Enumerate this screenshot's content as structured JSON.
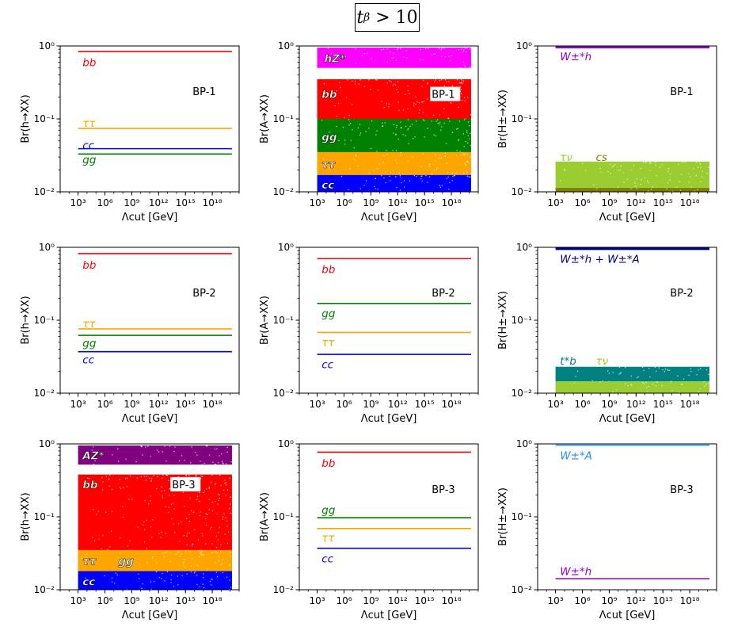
{
  "figure": {
    "title_base": "t",
    "title_sub": "β",
    "title_rel": "> 10"
  },
  "chart_data": [
    {
      "type": "band-plot",
      "panel": "r1c1",
      "title": "BP-1",
      "xlabel": "Λcut [GeV]",
      "ylabel": "Br(h→XX)",
      "xlim": [
        1,
        21
      ],
      "ylim": [
        0.01,
        1
      ],
      "xticks": [
        {
          "v": 3,
          "label": "10³"
        },
        {
          "v": 6,
          "label": "10⁶"
        },
        {
          "v": 9,
          "label": "10⁹"
        },
        {
          "v": 12,
          "label": "10¹²"
        },
        {
          "v": 15,
          "label": "10¹⁵"
        },
        {
          "v": 18,
          "label": "10¹⁸"
        }
      ],
      "yticks": [
        {
          "v": 0.01,
          "label": "10⁻²"
        },
        {
          "v": 0.1,
          "label": "10⁻¹"
        },
        {
          "v": 1,
          "label": "10⁰"
        }
      ],
      "series": [
        {
          "name": "bb",
          "kind": "line",
          "value": 0.84,
          "color": "#ff0000"
        },
        {
          "name": "ττ",
          "kind": "line",
          "value": 0.074,
          "color": "#ffa500"
        },
        {
          "name": "cc",
          "kind": "line",
          "value": 0.039,
          "color": "#0000ff"
        },
        {
          "name": "gg",
          "kind": "line",
          "value": 0.033,
          "color": "#008000"
        }
      ],
      "labels": [
        {
          "text": "bb",
          "color": "#ff0000",
          "x": 3.5,
          "y": 0.6
        },
        {
          "text": "ττ",
          "color": "#ffa500",
          "x": 3.5,
          "y": 0.088
        },
        {
          "text": "cc",
          "color": "#0000ff",
          "x": 3.5,
          "y": 0.044
        },
        {
          "text": "gg",
          "color": "#008000",
          "x": 3.5,
          "y": 0.028
        }
      ]
    },
    {
      "type": "band-plot",
      "panel": "r1c2",
      "title": "BP-1",
      "xlabel": "Λcut [GeV]",
      "ylabel": "Br(A→XX)",
      "xlim": [
        1,
        21
      ],
      "ylim": [
        0.01,
        1
      ],
      "xticks": [
        {
          "v": 3,
          "label": "10³"
        },
        {
          "v": 6,
          "label": "10⁶"
        },
        {
          "v": 9,
          "label": "10⁹"
        },
        {
          "v": 12,
          "label": "10¹²"
        },
        {
          "v": 15,
          "label": "10¹⁵"
        },
        {
          "v": 18,
          "label": "10¹⁸"
        }
      ],
      "yticks": [
        {
          "v": 0.01,
          "label": "10⁻²"
        },
        {
          "v": 0.1,
          "label": "10⁻¹"
        },
        {
          "v": 1,
          "label": "10⁰"
        }
      ],
      "series": [
        {
          "name": "hZ*",
          "kind": "band",
          "range": [
            0.5,
            0.95
          ],
          "color": "#ff00ff"
        },
        {
          "name": "bb",
          "kind": "band",
          "range": [
            0.1,
            0.35
          ],
          "color": "#ff0000"
        },
        {
          "name": "gg",
          "kind": "band",
          "range": [
            0.035,
            0.1
          ],
          "color": "#008000"
        },
        {
          "name": "ττ",
          "kind": "band",
          "range": [
            0.017,
            0.035
          ],
          "color": "#ffa500"
        },
        {
          "name": "cc",
          "kind": "band",
          "range": [
            0.01,
            0.017
          ],
          "color": "#0000ff"
        }
      ],
      "labels": [
        {
          "text": "hZ*",
          "color": "#ffffff",
          "x": 3.8,
          "y": 0.68,
          "outline": true
        },
        {
          "text": "bb",
          "color": "#ffffff",
          "x": 3.5,
          "y": 0.22,
          "outline": true
        },
        {
          "text": "BP-1",
          "color": "#000000",
          "x": 15.8,
          "y": 0.22
        },
        {
          "text": "gg",
          "color": "#ffffff",
          "x": 3.5,
          "y": 0.057,
          "outline": true
        },
        {
          "text": "ττ",
          "color": "#ffffff",
          "x": 3.5,
          "y": 0.024,
          "outline": true
        },
        {
          "text": "cc",
          "color": "#ffffff",
          "x": 3.5,
          "y": 0.0125,
          "outline": true
        }
      ]
    },
    {
      "type": "band-plot",
      "panel": "r1c3",
      "title": "BP-1",
      "xlabel": "Λcut [GeV]",
      "ylabel": "Br(H±→XX)",
      "xlim": [
        1,
        21
      ],
      "ylim": [
        0.01,
        1
      ],
      "xticks": [
        {
          "v": 3,
          "label": "10³"
        },
        {
          "v": 6,
          "label": "10⁶"
        },
        {
          "v": 9,
          "label": "10⁹"
        },
        {
          "v": 12,
          "label": "10¹²"
        },
        {
          "v": 15,
          "label": "10¹⁵"
        },
        {
          "v": 18,
          "label": "10¹⁸"
        }
      ],
      "yticks": [
        {
          "v": 0.01,
          "label": "10⁻²"
        },
        {
          "v": 0.1,
          "label": "10⁻¹"
        },
        {
          "v": 1,
          "label": "10⁰"
        }
      ],
      "series": [
        {
          "name": "W±*h",
          "kind": "line",
          "value": 0.97,
          "color": "#9400d3",
          "width": 3.5
        },
        {
          "name": "τν",
          "kind": "band",
          "range": [
            0.011,
            0.026
          ],
          "color": "#9acd32"
        },
        {
          "name": "cs",
          "kind": "band",
          "range": [
            0.01,
            0.0113
          ],
          "color": "#808000"
        }
      ],
      "labels": [
        {
          "text": "W±*h",
          "color": "#9400d3",
          "x": 3.5,
          "y": 0.72
        },
        {
          "text": "τν",
          "color": "#9acd32",
          "x": 3.5,
          "y": 0.03
        },
        {
          "text": "cs",
          "color": "#808000",
          "x": 7.5,
          "y": 0.03
        }
      ]
    },
    {
      "type": "band-plot",
      "panel": "r2c1",
      "title": "BP-2",
      "xlabel": "Λcut [GeV]",
      "ylabel": "Br(h→XX)",
      "xlim": [
        1,
        21
      ],
      "ylim": [
        0.01,
        1
      ],
      "xticks": [
        {
          "v": 3,
          "label": "10³"
        },
        {
          "v": 6,
          "label": "10⁶"
        },
        {
          "v": 9,
          "label": "10⁹"
        },
        {
          "v": 12,
          "label": "10¹²"
        },
        {
          "v": 15,
          "label": "10¹⁵"
        },
        {
          "v": 18,
          "label": "10¹⁸"
        }
      ],
      "yticks": [
        {
          "v": 0.01,
          "label": "10⁻²"
        },
        {
          "v": 0.1,
          "label": "10⁻¹"
        },
        {
          "v": 1,
          "label": "10⁰"
        }
      ],
      "series": [
        {
          "name": "bb",
          "kind": "line",
          "value": 0.82,
          "color": "#ff0000"
        },
        {
          "name": "ττ",
          "kind": "line",
          "value": 0.076,
          "color": "#ffa500"
        },
        {
          "name": "gg",
          "kind": "line",
          "value": 0.062,
          "color": "#008000"
        },
        {
          "name": "cc",
          "kind": "line",
          "value": 0.037,
          "color": "#0000ff"
        }
      ],
      "labels": [
        {
          "text": "bb",
          "color": "#ff0000",
          "x": 3.5,
          "y": 0.58
        },
        {
          "text": "ττ",
          "color": "#ffa500",
          "x": 3.5,
          "y": 0.09
        },
        {
          "text": "gg",
          "color": "#008000",
          "x": 3.5,
          "y": 0.049
        },
        {
          "text": "cc",
          "color": "#0000ff",
          "x": 3.5,
          "y": 0.029
        }
      ]
    },
    {
      "type": "band-plot",
      "panel": "r2c2",
      "title": "BP-2",
      "xlabel": "Λcut [GeV]",
      "ylabel": "Br(A→XX)",
      "xlim": [
        1,
        21
      ],
      "ylim": [
        0.01,
        1
      ],
      "xticks": [
        {
          "v": 3,
          "label": "10³"
        },
        {
          "v": 6,
          "label": "10⁶"
        },
        {
          "v": 9,
          "label": "10⁹"
        },
        {
          "v": 12,
          "label": "10¹²"
        },
        {
          "v": 15,
          "label": "10¹⁵"
        },
        {
          "v": 18,
          "label": "10¹⁸"
        }
      ],
      "yticks": [
        {
          "v": 0.01,
          "label": "10⁻²"
        },
        {
          "v": 0.1,
          "label": "10⁻¹"
        },
        {
          "v": 1,
          "label": "10⁰"
        }
      ],
      "series": [
        {
          "name": "bb",
          "kind": "line",
          "value": 0.7,
          "color": "#ff0000"
        },
        {
          "name": "gg",
          "kind": "line",
          "value": 0.17,
          "color": "#008000"
        },
        {
          "name": "ττ",
          "kind": "line",
          "value": 0.068,
          "color": "#ffa500"
        },
        {
          "name": "cc",
          "kind": "line",
          "value": 0.034,
          "color": "#0000ff"
        }
      ],
      "labels": [
        {
          "text": "bb",
          "color": "#ff0000",
          "x": 3.5,
          "y": 0.5
        },
        {
          "text": "gg",
          "color": "#008000",
          "x": 3.5,
          "y": 0.125
        },
        {
          "text": "ττ",
          "color": "#ffa500",
          "x": 3.5,
          "y": 0.05
        },
        {
          "text": "cc",
          "color": "#0000ff",
          "x": 3.5,
          "y": 0.025
        }
      ]
    },
    {
      "type": "band-plot",
      "panel": "r2c3",
      "title": "BP-2",
      "xlabel": "Λcut [GeV]",
      "ylabel": "Br(H±→XX)",
      "xlim": [
        1,
        21
      ],
      "ylim": [
        0.01,
        1
      ],
      "xticks": [
        {
          "v": 3,
          "label": "10³"
        },
        {
          "v": 6,
          "label": "10⁶"
        },
        {
          "v": 9,
          "label": "10⁹"
        },
        {
          "v": 12,
          "label": "10¹²"
        },
        {
          "v": 15,
          "label": "10¹⁵"
        },
        {
          "v": 18,
          "label": "10¹⁸"
        }
      ],
      "yticks": [
        {
          "v": 0.01,
          "label": "10⁻²"
        },
        {
          "v": 0.1,
          "label": "10⁻¹"
        },
        {
          "v": 1,
          "label": "10⁰"
        }
      ],
      "series": [
        {
          "name": "W±*h + W±*A",
          "kind": "line",
          "value": 0.96,
          "color": "#000080",
          "width": 3.5
        },
        {
          "name": "t*b",
          "kind": "band",
          "range": [
            0.0145,
            0.023
          ],
          "color": "#008080"
        },
        {
          "name": "τν",
          "kind": "band",
          "range": [
            0.01,
            0.0145
          ],
          "color": "#9acd32"
        }
      ],
      "labels": [
        {
          "text": "W±*h + W±*A",
          "color": "#000080",
          "x": 3.5,
          "y": 0.7
        },
        {
          "text": "t*b",
          "color": "#008080",
          "x": 3.5,
          "y": 0.028
        },
        {
          "text": "τν",
          "color": "#9acd32",
          "x": 7.5,
          "y": 0.028
        }
      ]
    },
    {
      "type": "band-plot",
      "panel": "r3c1",
      "title": "BP-3",
      "xlabel": "Λcut [GeV]",
      "ylabel": "Br(h→XX)",
      "xlim": [
        1,
        21
      ],
      "ylim": [
        0.01,
        1
      ],
      "xticks": [
        {
          "v": 3,
          "label": "10³"
        },
        {
          "v": 6,
          "label": "10⁶"
        },
        {
          "v": 9,
          "label": "10⁹"
        },
        {
          "v": 12,
          "label": "10¹²"
        },
        {
          "v": 15,
          "label": "10¹⁵"
        },
        {
          "v": 18,
          "label": "10¹⁸"
        }
      ],
      "yticks": [
        {
          "v": 0.01,
          "label": "10⁻²"
        },
        {
          "v": 0.1,
          "label": "10⁻¹"
        },
        {
          "v": 1,
          "label": "10⁰"
        }
      ],
      "series": [
        {
          "name": "AZ*",
          "kind": "band",
          "range": [
            0.52,
            0.95
          ],
          "color": "#800080"
        },
        {
          "name": "bb",
          "kind": "band",
          "range": [
            0.035,
            0.38
          ],
          "color": "#ff0000"
        },
        {
          "name": "gg",
          "kind": "band",
          "range": [
            0.018,
            0.035
          ],
          "color": "#008000"
        },
        {
          "name": "ττ",
          "kind": "band",
          "range": [
            0.018,
            0.035
          ],
          "color": "#ffa500"
        },
        {
          "name": "cc",
          "kind": "band",
          "range": [
            0.01,
            0.018
          ],
          "color": "#0000ff"
        }
      ],
      "labels": [
        {
          "text": "AZ*",
          "color": "#ffffff",
          "x": 3.5,
          "y": 0.7,
          "outline": true
        },
        {
          "text": "bb",
          "color": "#ffffff",
          "x": 3.5,
          "y": 0.28,
          "outline": true
        },
        {
          "text": "BP-3",
          "color": "#000000",
          "x": 13.5,
          "y": 0.28
        },
        {
          "text": "ττ",
          "color": "#ffffff",
          "x": 3.5,
          "y": 0.025,
          "outline": true
        },
        {
          "text": "gg",
          "color": "#ffffff",
          "x": 7.5,
          "y": 0.025,
          "outline": true
        },
        {
          "text": "cc",
          "color": "#ffffff",
          "x": 3.5,
          "y": 0.013,
          "outline": true
        }
      ]
    },
    {
      "type": "band-plot",
      "panel": "r3c2",
      "title": "BP-3",
      "xlabel": "Λcut [GeV]",
      "ylabel": "Br(A→XX)",
      "xlim": [
        1,
        21
      ],
      "ylim": [
        0.01,
        1
      ],
      "xticks": [
        {
          "v": 3,
          "label": "10³"
        },
        {
          "v": 6,
          "label": "10⁶"
        },
        {
          "v": 9,
          "label": "10⁹"
        },
        {
          "v": 12,
          "label": "10¹²"
        },
        {
          "v": 15,
          "label": "10¹⁵"
        },
        {
          "v": 18,
          "label": "10¹⁸"
        }
      ],
      "yticks": [
        {
          "v": 0.01,
          "label": "10⁻²"
        },
        {
          "v": 0.1,
          "label": "10⁻¹"
        },
        {
          "v": 1,
          "label": "10⁰"
        }
      ],
      "series": [
        {
          "name": "bb",
          "kind": "line",
          "value": 0.77,
          "color": "#ff0000"
        },
        {
          "name": "gg",
          "kind": "line",
          "value": 0.097,
          "color": "#008000"
        },
        {
          "name": "ττ",
          "kind": "line",
          "value": 0.069,
          "color": "#ffa500"
        },
        {
          "name": "cc",
          "kind": "line",
          "value": 0.037,
          "color": "#0000ff"
        }
      ],
      "labels": [
        {
          "text": "bb",
          "color": "#ff0000",
          "x": 3.5,
          "y": 0.55
        },
        {
          "text": "gg",
          "color": "#008000",
          "x": 3.5,
          "y": 0.125
        },
        {
          "text": "ττ",
          "color": "#ffa500",
          "x": 3.5,
          "y": 0.052
        },
        {
          "text": "cc",
          "color": "#0000ff",
          "x": 3.5,
          "y": 0.027
        }
      ]
    },
    {
      "type": "band-plot",
      "panel": "r3c3",
      "title": "BP-3",
      "xlabel": "Λcut [GeV]",
      "ylabel": "Br(H±→XX)",
      "xlim": [
        1,
        21
      ],
      "ylim": [
        0.01,
        1
      ],
      "xticks": [
        {
          "v": 3,
          "label": "10³"
        },
        {
          "v": 6,
          "label": "10⁶"
        },
        {
          "v": 9,
          "label": "10⁹"
        },
        {
          "v": 12,
          "label": "10¹²"
        },
        {
          "v": 15,
          "label": "10¹⁵"
        },
        {
          "v": 18,
          "label": "10¹⁸"
        }
      ],
      "yticks": [
        {
          "v": 0.01,
          "label": "10⁻²"
        },
        {
          "v": 0.1,
          "label": "10⁻¹"
        },
        {
          "v": 1,
          "label": "10⁰"
        }
      ],
      "series": [
        {
          "name": "W±*A",
          "kind": "line",
          "value": 0.96,
          "color": "#1e90ff"
        },
        {
          "name": "W±*h",
          "kind": "line",
          "value": 0.0142,
          "color": "#9400d3"
        }
      ],
      "labels": [
        {
          "text": "W±*A",
          "color": "#1e90ff",
          "x": 3.5,
          "y": 0.7
        },
        {
          "text": "W±*h",
          "color": "#9400d3",
          "x": 3.5,
          "y": 0.018
        }
      ]
    }
  ]
}
